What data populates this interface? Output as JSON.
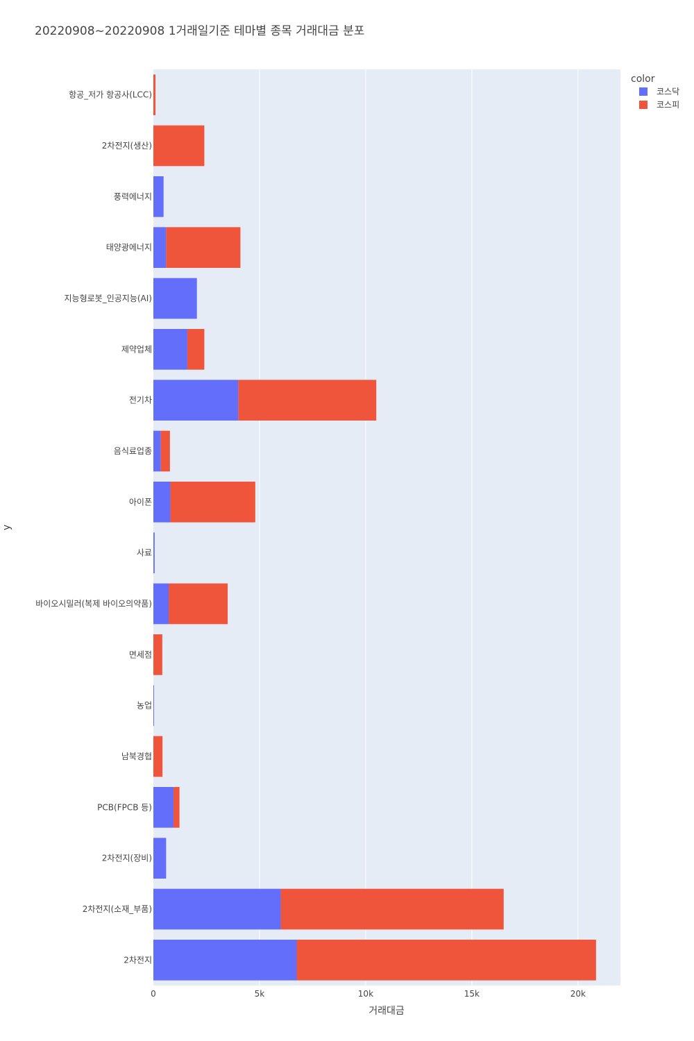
{
  "chart_data": {
    "type": "bar",
    "orientation": "horizontal",
    "barmode": "stack",
    "title": "20220908~20220908 1거래일기준 테마별 종목 거래대금 분포",
    "xlabel": "거래대금",
    "ylabel": "y",
    "xlim": [
      0,
      22000
    ],
    "xticks": [
      {
        "value": 0,
        "label": "0"
      },
      {
        "value": 5000,
        "label": "5k"
      },
      {
        "value": 10000,
        "label": "10k"
      },
      {
        "value": 15000,
        "label": "15k"
      },
      {
        "value": 20000,
        "label": "20k"
      }
    ],
    "legend": {
      "title": "color",
      "position": "top-right"
    },
    "categories": [
      "항공_저가 항공사(LCC)",
      "2차전지(생산)",
      "풍력에너지",
      "태양광에너지",
      "지능형로봇_인공지능(AI)",
      "제약업체",
      "전기차",
      "음식료업종",
      "아이폰",
      "사료",
      "바이오시밀러(복제 바이오의약품)",
      "면세점",
      "농업",
      "남북경협",
      "PCB(FPCB 등)",
      "2차전지(장비)",
      "2차전지(소재_부품)",
      "2차전지"
    ],
    "series": [
      {
        "name": "코스닥",
        "color": "#636efa",
        "values": [
          0,
          0,
          480,
          600,
          2050,
          1600,
          4000,
          350,
          800,
          60,
          720,
          0,
          30,
          0,
          950,
          600,
          6000,
          6750
        ]
      },
      {
        "name": "코스피",
        "color": "#ef553b",
        "values": [
          100,
          2400,
          0,
          3500,
          0,
          800,
          6500,
          430,
          4000,
          0,
          2780,
          420,
          0,
          430,
          280,
          0,
          10500,
          14100
        ]
      }
    ]
  }
}
